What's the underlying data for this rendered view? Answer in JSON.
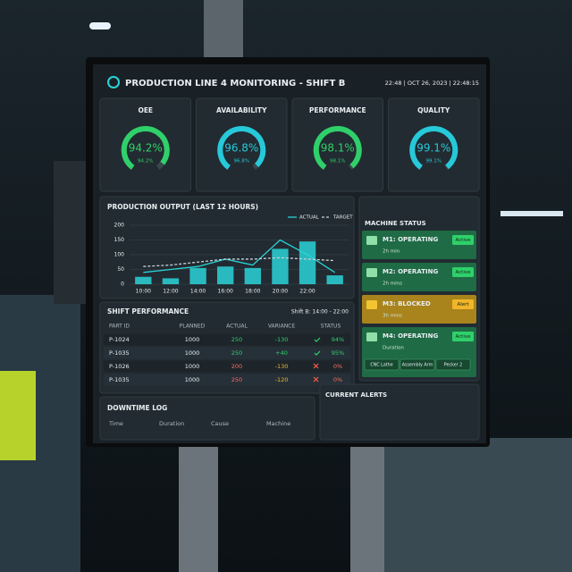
{
  "header": {
    "title": "PRODUCTION LINE 4 MONITORING - SHIFT B",
    "datetime": "22:48 | OCT 26, 2023 | 22:48:15"
  },
  "kpis": [
    {
      "title": "OEE",
      "value": 94.2,
      "label": "94.2%",
      "sublabel": "94.2%",
      "color": "#2fd06a"
    },
    {
      "title": "AVAILABILITY",
      "value": 96.8,
      "label": "96.8%",
      "sublabel": "96.8%",
      "color": "#26c9d9"
    },
    {
      "title": "PERFORMANCE",
      "value": 98.1,
      "label": "98.1%",
      "sublabel": "98.1%",
      "color": "#2fd06a"
    },
    {
      "title": "QUALITY",
      "value": 99.1,
      "label": "99.1%",
      "sublabel": "99.1%",
      "color": "#26c9d9"
    }
  ],
  "chart_data": {
    "type": "bar",
    "title": "PRODUCTION OUTPUT (LAST 12 HOURS)",
    "categories": [
      "10:00",
      "12:00",
      "14:00",
      "16:00",
      "18:00",
      "20:00",
      "22:00",
      null
    ],
    "series": [
      {
        "type": "bar",
        "color": "#2ad4d8",
        "values": [
          25,
          20,
          55,
          60,
          55,
          120,
          145,
          30
        ]
      },
      {
        "type": "line",
        "name": "ACTUAL",
        "color": "#2ad4d8",
        "values": [
          40,
          50,
          60,
          85,
          65,
          150,
          100,
          40
        ]
      },
      {
        "type": "line",
        "name": "TARGET",
        "color": "#c9d1d9",
        "dashed": true,
        "values": [
          60,
          65,
          75,
          85,
          85,
          90,
          85,
          80
        ]
      }
    ],
    "ylim": [
      0,
      200
    ],
    "yticks": [
      0,
      50,
      100,
      150,
      200
    ],
    "grid": true
  },
  "machine_status": {
    "title": "MACHINE STATUS",
    "machines": [
      {
        "name": "M1: OPERATING",
        "badge": "Active",
        "time": "2h min",
        "state": "ok"
      },
      {
        "name": "M2: OPERATING",
        "badge": "Active",
        "time": "2h mins",
        "state": "ok"
      },
      {
        "name": "M3: BLOCKED",
        "badge": "Alert",
        "time": "3h mins",
        "state": "alert"
      },
      {
        "name": "M4: OPERATING",
        "badge": "Active",
        "time": "Duration",
        "state": "ok",
        "tags": [
          "CNC Lathe",
          "Assembly Arm",
          "Pecker 2"
        ]
      }
    ]
  },
  "shift_performance": {
    "title": "SHIFT PERFORMANCE",
    "shift": "Shift B: 14:00 - 22:00",
    "columns": [
      "PART ID",
      "PLANNED",
      "ACTUAL",
      "VARIANCE",
      "STATUS"
    ],
    "rows": [
      [
        "P-1024",
        "1000",
        "250",
        "-130",
        "94%"
      ],
      [
        "P-1035",
        "1000",
        "250",
        "+40",
        "95%"
      ],
      [
        "P-1026",
        "1000",
        "200",
        "-130",
        "0%"
      ],
      [
        "P-1035",
        "1000",
        "250",
        "-120",
        "0%"
      ]
    ],
    "row_states": [
      "ok",
      "ok",
      "fail",
      "fail"
    ]
  },
  "downtime_log": {
    "title": "DOWNTIME LOG",
    "columns": [
      "Time",
      "Duration",
      "Cause",
      "Machine"
    ]
  },
  "current_alerts": {
    "title": "CURRENT ALERTS"
  }
}
